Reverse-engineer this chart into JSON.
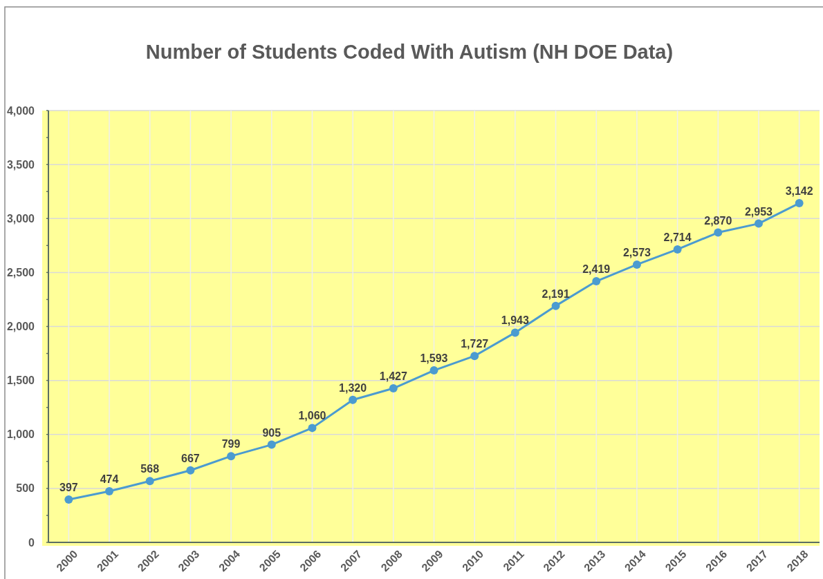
{
  "chart_data": {
    "type": "line",
    "title": "Number of Students Coded With Autism (NH DOE Data)",
    "categories": [
      "2000",
      "2001",
      "2002",
      "2003",
      "2004",
      "2005",
      "2006",
      "2007",
      "2008",
      "2009",
      "2010",
      "2011",
      "2012",
      "2013",
      "2014",
      "2015",
      "2016",
      "2017",
      "2018"
    ],
    "series": [
      {
        "color": "#4b9bd0",
        "values": [
          397,
          474,
          568,
          667,
          799,
          905,
          1060,
          1320,
          1427,
          1593,
          1727,
          1943,
          2191,
          2419,
          2573,
          2714,
          2870,
          2953,
          3142
        ],
        "value_labels": [
          "397",
          "474",
          "568",
          "667",
          "799",
          "905",
          "1,060",
          "1,320",
          "1,427",
          "1,593",
          "1,727",
          "1,943",
          "2,191",
          "2,419",
          "2,573",
          "2,714",
          "2,870",
          "2,953",
          "3,142"
        ]
      }
    ],
    "ylim": [
      0,
      4000
    ],
    "yticks": [
      {
        "value": 0,
        "label": "0"
      },
      {
        "value": 250,
        "label": null
      },
      {
        "value": 500,
        "label": "500"
      },
      {
        "value": 750,
        "label": null
      },
      {
        "value": 1000,
        "label": "1,000"
      },
      {
        "value": 1250,
        "label": null
      },
      {
        "value": 1500,
        "label": "1,500"
      },
      {
        "value": 1750,
        "label": null
      },
      {
        "value": 2000,
        "label": "2,000"
      },
      {
        "value": 2250,
        "label": null
      },
      {
        "value": 2500,
        "label": "2,500"
      },
      {
        "value": 2750,
        "label": null
      },
      {
        "value": 3000,
        "label": "3,000"
      },
      {
        "value": 3250,
        "label": null
      },
      {
        "value": 3500,
        "label": "3,500"
      },
      {
        "value": 3750,
        "label": null
      },
      {
        "value": 4000,
        "label": "4,000"
      }
    ],
    "grid": true,
    "marker": "circle",
    "line_style": "solid"
  }
}
